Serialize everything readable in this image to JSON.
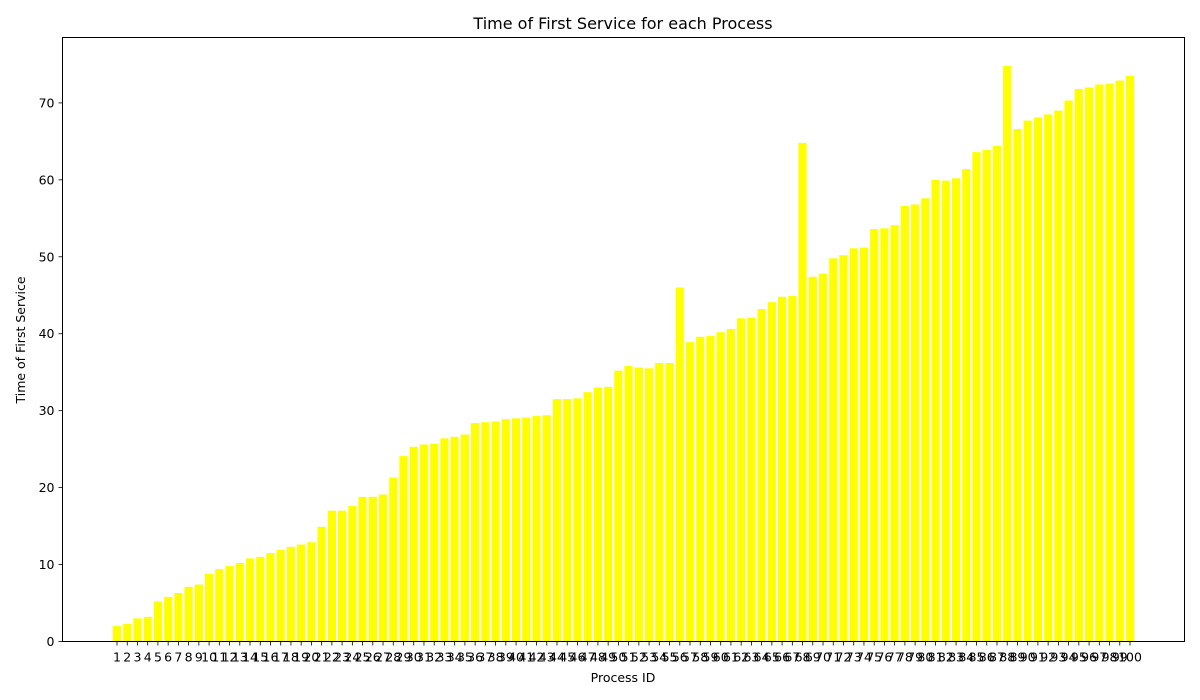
{
  "chart_data": {
    "type": "bar",
    "title": "Time of First Service for each Process",
    "xlabel": "Process ID",
    "ylabel": "Time of First Service",
    "bar_color": "#ffff00",
    "ylim": [
      0,
      78.5
    ],
    "yticks": [
      0,
      10,
      20,
      30,
      40,
      50,
      60,
      70
    ],
    "grid": false,
    "categories": [
      "1",
      "2",
      "3",
      "4",
      "5",
      "6",
      "7",
      "8",
      "9",
      "10",
      "11",
      "12",
      "13",
      "14",
      "15",
      "16",
      "17",
      "18",
      "19",
      "20",
      "21",
      "22",
      "23",
      "24",
      "25",
      "26",
      "27",
      "28",
      "29",
      "30",
      "31",
      "32",
      "33",
      "34",
      "35",
      "36",
      "37",
      "38",
      "39",
      "40",
      "41",
      "42",
      "43",
      "44",
      "45",
      "46",
      "47",
      "48",
      "49",
      "50",
      "51",
      "52",
      "53",
      "54",
      "55",
      "56",
      "57",
      "58",
      "59",
      "60",
      "61",
      "62",
      "63",
      "64",
      "65",
      "66",
      "67",
      "68",
      "69",
      "70",
      "71",
      "72",
      "73",
      "74",
      "75",
      "76",
      "77",
      "78",
      "79",
      "80",
      "81",
      "82",
      "83",
      "84",
      "85",
      "86",
      "87",
      "88",
      "89",
      "90",
      "91",
      "92",
      "93",
      "94",
      "95",
      "96",
      "97",
      "98",
      "99",
      "100"
    ],
    "values": [
      2.0,
      2.3,
      3.0,
      3.2,
      5.2,
      5.8,
      6.3,
      7.1,
      7.4,
      8.8,
      9.4,
      9.8,
      10.2,
      10.8,
      11.0,
      11.5,
      11.9,
      12.3,
      12.6,
      12.9,
      14.9,
      17.0,
      17.0,
      17.6,
      18.8,
      18.8,
      19.1,
      21.3,
      24.1,
      25.3,
      25.6,
      25.7,
      26.4,
      26.6,
      26.9,
      28.4,
      28.5,
      28.6,
      28.9,
      29.0,
      29.1,
      29.3,
      29.4,
      31.5,
      31.5,
      31.6,
      32.4,
      33.0,
      33.1,
      35.2,
      35.8,
      35.6,
      35.5,
      36.2,
      36.2,
      46.0,
      38.9,
      39.6,
      39.7,
      40.2,
      40.6,
      42.0,
      42.1,
      43.2,
      44.1,
      44.8,
      44.9,
      64.8,
      47.4,
      47.8,
      49.8,
      50.2,
      51.1,
      51.2,
      53.6,
      53.7,
      54.1,
      56.6,
      56.8,
      57.6,
      60.0,
      59.9,
      60.2,
      61.4,
      63.6,
      63.9,
      64.4,
      74.8,
      66.6,
      67.7,
      68.1,
      68.5,
      69.0,
      70.3,
      71.8,
      72.0,
      72.4,
      72.5,
      72.9,
      73.5
    ]
  }
}
